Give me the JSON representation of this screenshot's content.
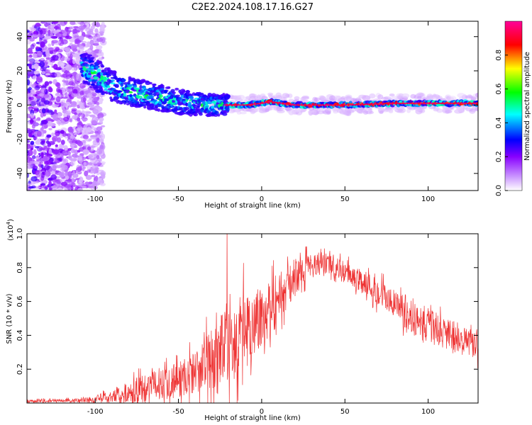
{
  "title": "C2E2.2024.108.17.16.G27",
  "chart_data": [
    {
      "type": "heatmap",
      "xlabel": "Height of straight line (km)",
      "ylabel": "Frequency (Hz)",
      "xlim": [
        -141,
        130
      ],
      "ylim": [
        -50,
        49
      ],
      "xticks": [
        -100,
        -50,
        0,
        50,
        100
      ],
      "yticks": [
        -40,
        -20,
        0,
        20,
        40
      ],
      "xtick_labels": [
        "-100",
        "-50",
        "0",
        "50",
        "100"
      ],
      "ytick_labels": [
        "-40",
        "-20",
        "0",
        "20",
        "40"
      ],
      "colorbar": {
        "label": "Normalized spectral amplitude",
        "range": [
          0,
          1
        ],
        "ticks": [
          0.0,
          0.2,
          0.4,
          0.6,
          0.8
        ],
        "tick_labels": [
          "0.0",
          "0.2",
          "0.4",
          "0.6",
          "0.8"
        ],
        "colormap": [
          "#ffffff",
          "#cc99ff",
          "#8800ff",
          "#0000ff",
          "#00ffff",
          "#00ff00",
          "#ffff00",
          "#ff0000",
          "#ff0099"
        ]
      },
      "ridge": [
        {
          "x": -105,
          "y": 21
        },
        {
          "x": -100,
          "y": 18
        },
        {
          "x": -95,
          "y": 14
        },
        {
          "x": -90,
          "y": 11
        },
        {
          "x": -80,
          "y": 8
        },
        {
          "x": -70,
          "y": 6
        },
        {
          "x": -60,
          "y": 4
        },
        {
          "x": -50,
          "y": 2
        },
        {
          "x": -40,
          "y": 1
        },
        {
          "x": -30,
          "y": 0
        },
        {
          "x": -20,
          "y": 0
        },
        {
          "x": -10,
          "y": 0
        },
        {
          "x": 0,
          "y": 1
        },
        {
          "x": 5,
          "y": 2
        },
        {
          "x": 20,
          "y": 0
        },
        {
          "x": 50,
          "y": 0
        },
        {
          "x": 80,
          "y": 1
        },
        {
          "x": 100,
          "y": 1
        },
        {
          "x": 130,
          "y": 1
        }
      ]
    },
    {
      "type": "line",
      "xlabel": "Height of straight line (km)",
      "ylabel": "SNR (10 * v/v)",
      "yscale_label": "(x10",
      "yscale_exp": "4",
      "yscale_close": ")",
      "xlim": [
        -141,
        130
      ],
      "ylim": [
        0,
        1.0
      ],
      "xticks": [
        -100,
        -50,
        0,
        50,
        100
      ],
      "yticks": [
        0.2,
        0.4,
        0.6,
        0.8,
        1.0
      ],
      "xtick_labels": [
        "-100",
        "-50",
        "0",
        "50",
        "100"
      ],
      "ytick_labels": [
        "0.2",
        "0.4",
        "0.6",
        "0.8",
        "1.0"
      ],
      "color": "#ee3333",
      "envelope": [
        {
          "x": -141,
          "base": 0.01,
          "amp": 0.01
        },
        {
          "x": -110,
          "base": 0.015,
          "amp": 0.015
        },
        {
          "x": -100,
          "base": 0.02,
          "amp": 0.03
        },
        {
          "x": -90,
          "base": 0.04,
          "amp": 0.05
        },
        {
          "x": -80,
          "base": 0.06,
          "amp": 0.08
        },
        {
          "x": -70,
          "base": 0.09,
          "amp": 0.1
        },
        {
          "x": -60,
          "base": 0.12,
          "amp": 0.12
        },
        {
          "x": -50,
          "base": 0.14,
          "amp": 0.14
        },
        {
          "x": -40,
          "base": 0.18,
          "amp": 0.16
        },
        {
          "x": -30,
          "base": 0.26,
          "amp": 0.22
        },
        {
          "x": -20,
          "base": 0.33,
          "amp": 0.3
        },
        {
          "x": -10,
          "base": 0.42,
          "amp": 0.3
        },
        {
          "x": 0,
          "base": 0.52,
          "amp": 0.25
        },
        {
          "x": 10,
          "base": 0.62,
          "amp": 0.2
        },
        {
          "x": 20,
          "base": 0.74,
          "amp": 0.12
        },
        {
          "x": 30,
          "base": 0.83,
          "amp": 0.09
        },
        {
          "x": 40,
          "base": 0.82,
          "amp": 0.08
        },
        {
          "x": 50,
          "base": 0.77,
          "amp": 0.08
        },
        {
          "x": 60,
          "base": 0.72,
          "amp": 0.09
        },
        {
          "x": 70,
          "base": 0.66,
          "amp": 0.1
        },
        {
          "x": 80,
          "base": 0.58,
          "amp": 0.11
        },
        {
          "x": 90,
          "base": 0.51,
          "amp": 0.12
        },
        {
          "x": 100,
          "base": 0.46,
          "amp": 0.13
        },
        {
          "x": 110,
          "base": 0.41,
          "amp": 0.12
        },
        {
          "x": 120,
          "base": 0.37,
          "amp": 0.11
        },
        {
          "x": 130,
          "base": 0.34,
          "amp": 0.1
        }
      ]
    }
  ]
}
